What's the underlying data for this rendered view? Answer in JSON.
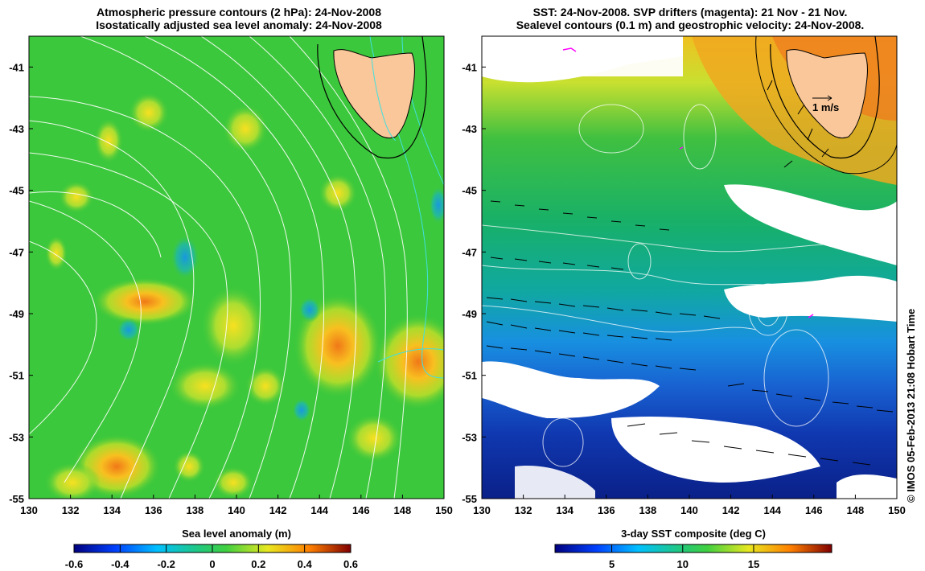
{
  "left_panel": {
    "title_line1": "Atmospheric pressure contours (2 hPa): 24-Nov-2008",
    "title_line2": "Isostatically adjusted sea level anomaly: 24-Nov-2008",
    "colorbar_title": "Sea level anomaly (m)",
    "colorbar_ticks": [
      "-0.6",
      "-0.4",
      "-0.2",
      "0",
      "0.2",
      "0.4",
      "0.6"
    ]
  },
  "right_panel": {
    "title_line1": "SST: 24-Nov-2008. SVP drifters (magenta): 21 Nov - 21 Nov.",
    "title_line2": "Sealevel contours (0.1 m) and geostrophic velocity: 24-Nov-2008.",
    "colorbar_title": "3-day SST composite (deg C)",
    "colorbar_ticks": [
      "5",
      "10",
      "15"
    ],
    "velocity_scale_label": "1 m/s"
  },
  "stamp": "© IMOS 05-Feb-2013 21:08 Hobart Time",
  "x_ticks": [
    "130",
    "132",
    "134",
    "136",
    "138",
    "140",
    "142",
    "144",
    "146",
    "148",
    "150"
  ],
  "y_ticks": [
    "-41",
    "-43",
    "-45",
    "-47",
    "-49",
    "-51",
    "-53",
    "-55"
  ],
  "colors": {
    "land": "#f9c79a",
    "sla_base": "#3cc83c",
    "cloud": "#ffffff",
    "sst_warm": "#f0b020",
    "sst_cold": "#0a2a9a"
  }
}
